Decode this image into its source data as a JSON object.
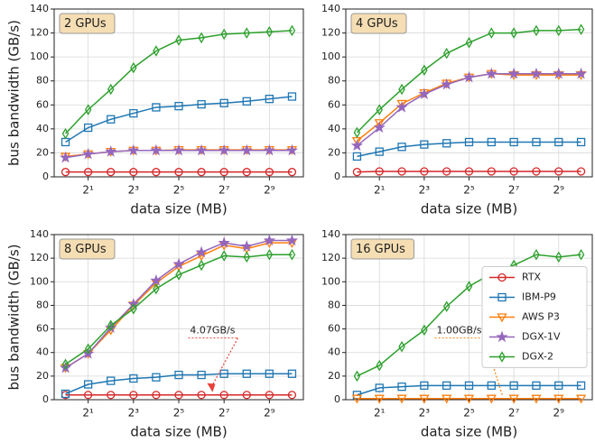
{
  "chart_data": [
    {
      "type": "line",
      "title": "2 GPUs",
      "xlabel": "data size (MB)",
      "ylabel": "bus bandwidth (GB/s)",
      "xscale": "log2",
      "x": [
        1,
        2,
        4,
        8,
        16,
        32,
        64,
        128,
        256,
        512,
        1024
      ],
      "xlim": [
        0.707,
        1448
      ],
      "xticks": [
        {
          "value": 2,
          "label": "2¹"
        },
        {
          "value": 8,
          "label": "2³"
        },
        {
          "value": 32,
          "label": "2⁵"
        },
        {
          "value": 128,
          "label": "2⁷"
        },
        {
          "value": 512,
          "label": "2⁹"
        }
      ],
      "ylim": [
        0,
        140
      ],
      "yticks": [
        0,
        20,
        40,
        60,
        80,
        100,
        120,
        140
      ],
      "grid": true,
      "series": [
        {
          "name": "RTX",
          "color": "#d62728",
          "marker": "circle",
          "values": [
            4,
            4,
            4,
            4,
            4,
            4,
            4,
            4,
            4,
            4,
            4
          ]
        },
        {
          "name": "IBM-P9",
          "color": "#1f77b4",
          "marker": "square",
          "values": [
            29,
            41,
            48,
            53,
            58,
            59,
            60.5,
            61.5,
            63,
            65,
            67
          ]
        },
        {
          "name": "AWS P3",
          "color": "#ff7f0e",
          "marker": "triangle-down",
          "values": [
            17,
            19,
            21,
            22,
            22,
            22.5,
            22.5,
            22.5,
            22.5,
            22.5,
            22.5
          ]
        },
        {
          "name": "DGX-1V",
          "color": "#9467bd",
          "marker": "star",
          "values": [
            16,
            19,
            21,
            22,
            22,
            22,
            22,
            22,
            22,
            22,
            22
          ]
        },
        {
          "name": "DGX-2",
          "color": "#2ca02c",
          "marker": "diamond",
          "values": [
            36,
            56,
            73,
            91,
            105,
            114,
            116,
            119,
            120,
            121,
            122
          ]
        }
      ]
    },
    {
      "type": "line",
      "title": "4 GPUs",
      "xlabel": "data size (MB)",
      "xscale": "log2",
      "x": [
        1,
        2,
        4,
        8,
        16,
        32,
        64,
        128,
        256,
        512,
        1024
      ],
      "xlim": [
        0.707,
        1448
      ],
      "xticks": [
        {
          "value": 2,
          "label": "2¹"
        },
        {
          "value": 8,
          "label": "2³"
        },
        {
          "value": 32,
          "label": "2⁵"
        },
        {
          "value": 128,
          "label": "2⁷"
        },
        {
          "value": 512,
          "label": "2⁹"
        }
      ],
      "ylim": [
        0,
        140
      ],
      "yticks": [
        0,
        20,
        40,
        60,
        80,
        100,
        120,
        140
      ],
      "grid": true,
      "series": [
        {
          "name": "RTX",
          "color": "#d62728",
          "marker": "circle",
          "values": [
            4,
            4.5,
            4.5,
            4.5,
            4.5,
            4.5,
            4.5,
            4.5,
            4.5,
            4.5,
            4.5
          ]
        },
        {
          "name": "IBM-P9",
          "color": "#1f77b4",
          "marker": "square",
          "values": [
            17,
            21,
            25,
            27,
            28,
            29,
            29,
            29,
            29,
            29,
            29
          ]
        },
        {
          "name": "AWS P3",
          "color": "#ff7f0e",
          "marker": "triangle-down",
          "values": [
            30,
            45,
            61,
            70,
            78,
            83,
            86,
            85,
            85,
            85,
            85
          ]
        },
        {
          "name": "DGX-1V",
          "color": "#9467bd",
          "marker": "star",
          "values": [
            26,
            41,
            58,
            69,
            77,
            83,
            86,
            86,
            86,
            86,
            86
          ]
        },
        {
          "name": "DGX-2",
          "color": "#2ca02c",
          "marker": "diamond",
          "values": [
            37,
            56,
            73,
            89,
            103,
            112,
            120,
            120,
            122,
            122,
            123
          ]
        }
      ]
    },
    {
      "type": "line",
      "title": "8 GPUs",
      "xlabel": "data size (MB)",
      "ylabel": "bus bandwidth (GB/s)",
      "xscale": "log2",
      "x": [
        1,
        2,
        4,
        8,
        16,
        32,
        64,
        128,
        256,
        512,
        1024
      ],
      "xlim": [
        0.707,
        1448
      ],
      "xticks": [
        {
          "value": 2,
          "label": "2¹"
        },
        {
          "value": 8,
          "label": "2³"
        },
        {
          "value": 32,
          "label": "2⁵"
        },
        {
          "value": 128,
          "label": "2⁷"
        },
        {
          "value": 512,
          "label": "2⁹"
        }
      ],
      "ylim": [
        0,
        140
      ],
      "yticks": [
        0,
        20,
        40,
        60,
        80,
        100,
        120,
        140
      ],
      "grid": true,
      "annotation": {
        "text": "4.07GB/s",
        "x": 90,
        "y": 4.07,
        "color": "#e8413a"
      },
      "series": [
        {
          "name": "RTX",
          "color": "#d62728",
          "marker": "circle",
          "values": [
            4,
            4,
            4,
            4,
            4,
            4,
            4,
            4,
            4,
            4,
            4
          ]
        },
        {
          "name": "IBM-P9",
          "color": "#1f77b4",
          "marker": "square",
          "values": [
            5,
            13,
            16,
            18,
            19,
            21,
            21,
            22,
            22,
            22,
            22
          ]
        },
        {
          "name": "AWS P3",
          "color": "#ff7f0e",
          "marker": "triangle-down",
          "values": [
            27,
            39,
            59,
            80,
            99,
            113,
            122,
            131,
            128,
            133,
            133
          ]
        },
        {
          "name": "DGX-1V",
          "color": "#9467bd",
          "marker": "star",
          "values": [
            27,
            39,
            61,
            81,
            101,
            115,
            125,
            133,
            130,
            135,
            135
          ]
        },
        {
          "name": "DGX-2",
          "color": "#2ca02c",
          "marker": "diamond",
          "values": [
            30,
            43,
            63,
            77,
            94,
            106,
            114,
            122,
            121,
            123,
            123
          ]
        }
      ]
    },
    {
      "type": "line",
      "title": "16 GPUs",
      "xlabel": "data size (MB)",
      "xscale": "log2",
      "x": [
        1,
        2,
        4,
        8,
        16,
        32,
        64,
        128,
        256,
        512,
        1024
      ],
      "xlim": [
        0.707,
        1448
      ],
      "xticks": [
        {
          "value": 2,
          "label": "2¹"
        },
        {
          "value": 8,
          "label": "2³"
        },
        {
          "value": 32,
          "label": "2⁵"
        },
        {
          "value": 128,
          "label": "2⁷"
        },
        {
          "value": 512,
          "label": "2⁹"
        }
      ],
      "ylim": [
        0,
        140
      ],
      "yticks": [
        0,
        20,
        40,
        60,
        80,
        100,
        120,
        140
      ],
      "grid": true,
      "legend": "center right",
      "annotation": {
        "text": "1.00GB/s",
        "x": 90,
        "y": 1,
        "color": "#ff7f0e"
      },
      "series": [
        {
          "name": "RTX",
          "color": "#d62728",
          "marker": "circle",
          "values": [
            null,
            null,
            null,
            null,
            null,
            null,
            null,
            null,
            null,
            null,
            null
          ]
        },
        {
          "name": "IBM-P9",
          "color": "#1f77b4",
          "marker": "square",
          "values": [
            4,
            10,
            11,
            12,
            12,
            12,
            12,
            12,
            12,
            12,
            12
          ]
        },
        {
          "name": "AWS P3",
          "color": "#ff7f0e",
          "marker": "triangle-down",
          "values": [
            1,
            1,
            1,
            1,
            1,
            1,
            1,
            1,
            1,
            1,
            1
          ]
        },
        {
          "name": "DGX-1V",
          "color": "#9467bd",
          "marker": "star",
          "values": [
            null,
            null,
            null,
            null,
            null,
            null,
            null,
            null,
            null,
            null,
            null
          ]
        },
        {
          "name": "DGX-2",
          "color": "#2ca02c",
          "marker": "diamond",
          "values": [
            20,
            29,
            45,
            59,
            79,
            96,
            107,
            114,
            123,
            121,
            123
          ]
        }
      ]
    }
  ]
}
